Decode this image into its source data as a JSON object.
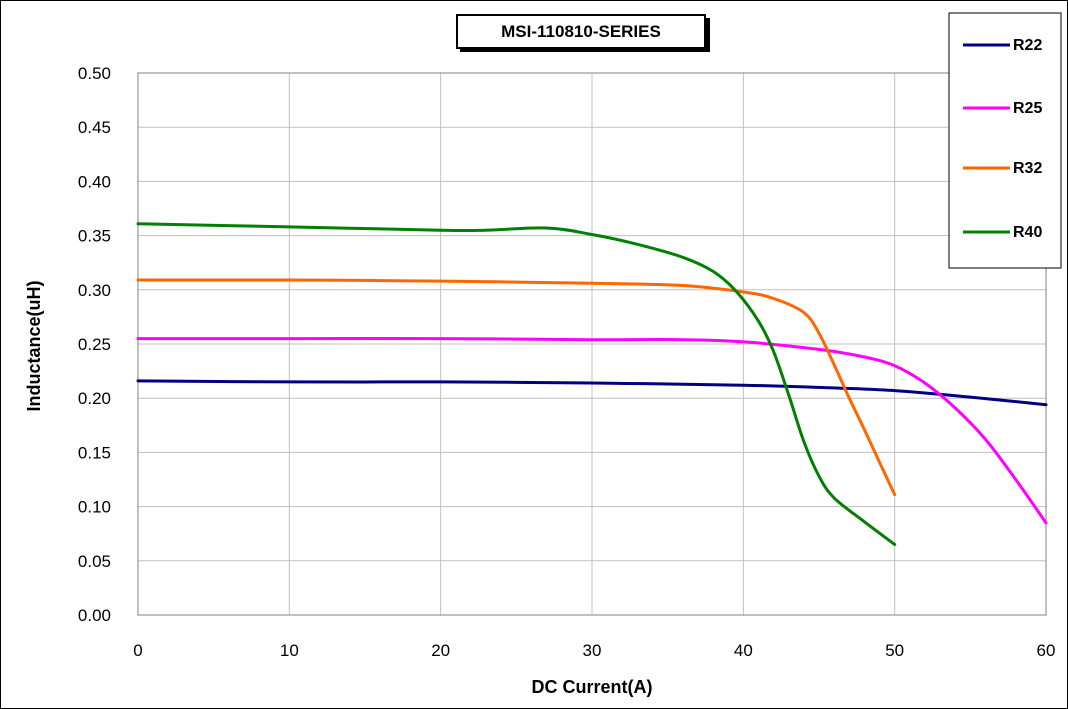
{
  "chart_data": {
    "type": "line",
    "title": "MSI-110810-SERIES",
    "xlabel": "DC Current(A)",
    "ylabel": "Inductance(uH)",
    "xlim": [
      0,
      60
    ],
    "ylim": [
      0,
      0.5
    ],
    "x_ticks": [
      "0",
      "10",
      "20",
      "30",
      "40",
      "50",
      "60"
    ],
    "y_ticks": [
      "0.00",
      "0.05",
      "0.10",
      "0.15",
      "0.20",
      "0.25",
      "0.30",
      "0.35",
      "0.40",
      "0.45",
      "0.50"
    ],
    "grid": true,
    "legend_position": "top-right",
    "series": [
      {
        "name": "R22",
        "color": "#000080",
        "x": [
          0,
          10,
          20,
          30,
          40,
          45,
          50,
          55,
          60
        ],
        "y": [
          0.216,
          0.215,
          0.215,
          0.214,
          0.212,
          0.21,
          0.207,
          0.201,
          0.194
        ]
      },
      {
        "name": "R25",
        "color": "#ff00ff",
        "x": [
          0,
          10,
          20,
          30,
          36,
          40,
          45,
          48,
          50,
          52,
          54,
          56,
          58,
          60
        ],
        "y": [
          0.255,
          0.255,
          0.255,
          0.254,
          0.254,
          0.252,
          0.245,
          0.238,
          0.23,
          0.214,
          0.191,
          0.162,
          0.125,
          0.085
        ]
      },
      {
        "name": "R32",
        "color": "#ff6600",
        "x": [
          0,
          10,
          20,
          30,
          36,
          40,
          42,
          44,
          45,
          46,
          47,
          48,
          49,
          50
        ],
        "y": [
          0.309,
          0.309,
          0.308,
          0.306,
          0.304,
          0.298,
          0.292,
          0.279,
          0.26,
          0.231,
          0.2,
          0.171,
          0.141,
          0.111
        ]
      },
      {
        "name": "R40",
        "color": "#008000",
        "x": [
          0,
          10,
          20,
          23,
          27,
          30,
          33,
          36,
          38,
          39.5,
          41,
          42,
          43,
          44,
          45,
          46,
          48,
          50
        ],
        "y": [
          0.361,
          0.358,
          0.355,
          0.355,
          0.357,
          0.351,
          0.342,
          0.33,
          0.317,
          0.299,
          0.271,
          0.243,
          0.203,
          0.16,
          0.128,
          0.108,
          0.086,
          0.065
        ]
      }
    ]
  }
}
